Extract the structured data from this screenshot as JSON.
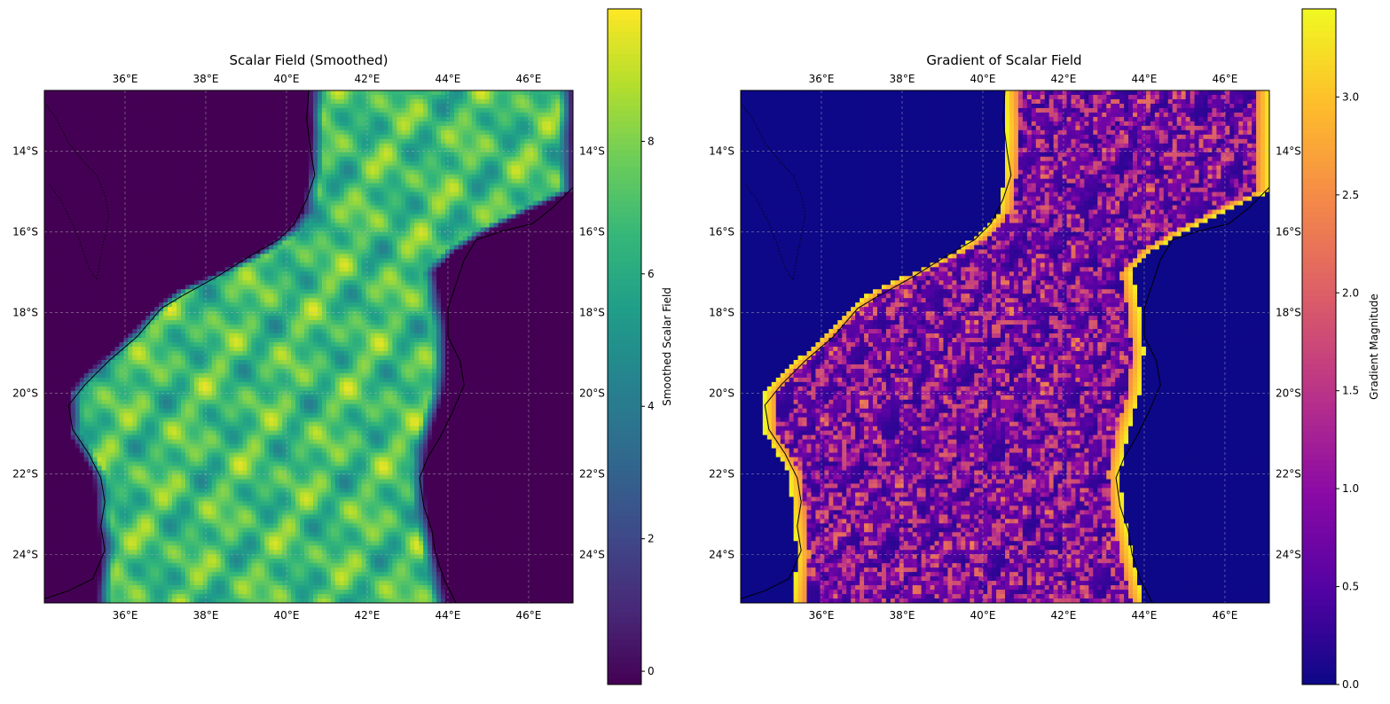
{
  "chart_data": [
    {
      "type": "heatmap",
      "title": "Scalar Field (Smoothed)",
      "colormap": "viridis",
      "colorbar_label": "Smoothed Scalar Field",
      "colorbar_range": [
        -0.2,
        10
      ],
      "colorbar_ticks": [
        {
          "value": 0,
          "label": "0"
        },
        {
          "value": 2,
          "label": "2"
        },
        {
          "value": 4,
          "label": "4"
        },
        {
          "value": 6,
          "label": "6"
        },
        {
          "value": 8,
          "label": "8"
        }
      ],
      "xlim": [
        34.0,
        47.1
      ],
      "ylim": [
        -25.2,
        -12.5
      ],
      "x_ticks": [
        {
          "value": 36,
          "label": "36°E"
        },
        {
          "value": 38,
          "label": "38°E"
        },
        {
          "value": 40,
          "label": "40°E"
        },
        {
          "value": 42,
          "label": "42°E"
        },
        {
          "value": 44,
          "label": "44°E"
        },
        {
          "value": 46,
          "label": "46°E"
        }
      ],
      "y_ticks": [
        {
          "value": -14,
          "label": "14°S"
        },
        {
          "value": -16,
          "label": "16°S"
        },
        {
          "value": -18,
          "label": "18°S"
        },
        {
          "value": -20,
          "label": "20°S"
        },
        {
          "value": -22,
          "label": "22°S"
        },
        {
          "value": -24,
          "label": "24°S"
        }
      ],
      "grid": true,
      "ocean_value": -0.2,
      "channel_mean_value": 7.5,
      "channel_value_range": [
        4.0,
        9.8
      ]
    },
    {
      "type": "heatmap",
      "title": "Gradient of Scalar Field",
      "colormap": "plasma",
      "colorbar_label": "Gradient Magnitude",
      "colorbar_range": [
        0,
        3.45
      ],
      "colorbar_ticks": [
        {
          "value": 0.0,
          "label": "0.0"
        },
        {
          "value": 0.5,
          "label": "0.5"
        },
        {
          "value": 1.0,
          "label": "1.0"
        },
        {
          "value": 1.5,
          "label": "1.5"
        },
        {
          "value": 2.0,
          "label": "2.0"
        },
        {
          "value": 2.5,
          "label": "2.5"
        },
        {
          "value": 3.0,
          "label": "3.0"
        }
      ],
      "xlim": [
        34.0,
        47.1
      ],
      "ylim": [
        -25.2,
        -12.5
      ],
      "x_ticks": [
        {
          "value": 36,
          "label": "36°E"
        },
        {
          "value": 38,
          "label": "38°E"
        },
        {
          "value": 40,
          "label": "40°E"
        },
        {
          "value": 42,
          "label": "42°E"
        },
        {
          "value": 44,
          "label": "44°E"
        },
        {
          "value": 46,
          "label": "46°E"
        }
      ],
      "y_ticks": [
        {
          "value": -14,
          "label": "14°S"
        },
        {
          "value": -16,
          "label": "16°S"
        },
        {
          "value": -18,
          "label": "18°S"
        },
        {
          "value": -20,
          "label": "20°S"
        },
        {
          "value": -22,
          "label": "22°S"
        },
        {
          "value": -24,
          "label": "24°S"
        }
      ],
      "grid": true,
      "ocean_value": 0.0,
      "channel_value_range": [
        0.2,
        1.2
      ],
      "edge_value_range": [
        2.5,
        3.4
      ]
    }
  ],
  "channel": {
    "west_boundary": [
      [
        -12.5,
        40.55
      ],
      [
        -13.5,
        40.6
      ],
      [
        -14.5,
        40.55
      ],
      [
        -15.5,
        40.4
      ],
      [
        -16.0,
        40.0
      ],
      [
        -16.5,
        39.3
      ],
      [
        -17.0,
        38.3
      ],
      [
        -17.5,
        37.2
      ],
      [
        -18.0,
        36.6
      ],
      [
        -19.0,
        35.6
      ],
      [
        -19.5,
        35.0
      ],
      [
        -20.0,
        34.6
      ],
      [
        -21.0,
        34.6
      ],
      [
        -22.0,
        35.2
      ],
      [
        -23.0,
        35.3
      ],
      [
        -24.0,
        35.4
      ],
      [
        -25.2,
        35.3
      ]
    ],
    "east_boundary": [
      [
        -12.5,
        47.1
      ],
      [
        -15.0,
        47.1
      ],
      [
        -15.5,
        46.0
      ],
      [
        -16.0,
        45.0
      ],
      [
        -16.5,
        44.2
      ],
      [
        -17.0,
        43.7
      ],
      [
        -18.0,
        43.9
      ],
      [
        -19.0,
        44.0
      ],
      [
        -20.0,
        43.9
      ],
      [
        -21.0,
        43.6
      ],
      [
        -22.0,
        43.4
      ],
      [
        -23.0,
        43.5
      ],
      [
        -24.0,
        43.7
      ],
      [
        -25.2,
        44.0
      ]
    ]
  },
  "coastlines": {
    "africa": [
      [
        40.55,
        -12.5
      ],
      [
        40.5,
        -13.2
      ],
      [
        40.6,
        -14.0
      ],
      [
        40.7,
        -14.6
      ],
      [
        40.5,
        -15.2
      ],
      [
        40.2,
        -15.8
      ],
      [
        39.8,
        -16.2
      ],
      [
        39.1,
        -16.6
      ],
      [
        38.3,
        -17.1
      ],
      [
        37.4,
        -17.6
      ],
      [
        36.9,
        -17.9
      ],
      [
        36.3,
        -18.6
      ],
      [
        35.6,
        -19.2
      ],
      [
        35.0,
        -19.8
      ],
      [
        34.6,
        -20.3
      ],
      [
        34.7,
        -20.9
      ],
      [
        35.1,
        -21.5
      ],
      [
        35.4,
        -22.1
      ],
      [
        35.5,
        -22.7
      ],
      [
        35.4,
        -23.3
      ],
      [
        35.5,
        -23.9
      ],
      [
        35.2,
        -24.6
      ],
      [
        34.6,
        -24.9
      ],
      [
        34.0,
        -25.1
      ]
    ],
    "madagascar": [
      [
        47.1,
        -14.9
      ],
      [
        46.6,
        -15.4
      ],
      [
        46.1,
        -15.8
      ],
      [
        45.3,
        -16.0
      ],
      [
        44.7,
        -16.2
      ],
      [
        44.4,
        -16.7
      ],
      [
        44.2,
        -17.3
      ],
      [
        44.0,
        -17.9
      ],
      [
        44.0,
        -18.6
      ],
      [
        44.3,
        -19.2
      ],
      [
        44.4,
        -19.8
      ],
      [
        44.1,
        -20.5
      ],
      [
        43.8,
        -21.1
      ],
      [
        43.5,
        -21.6
      ],
      [
        43.3,
        -22.1
      ],
      [
        43.4,
        -22.8
      ],
      [
        43.6,
        -23.4
      ],
      [
        43.7,
        -24.0
      ],
      [
        43.9,
        -24.6
      ],
      [
        44.2,
        -25.2
      ]
    ],
    "lake_malawi": [
      [
        34.0,
        -12.8
      ],
      [
        34.3,
        -13.2
      ],
      [
        34.6,
        -13.8
      ],
      [
        35.0,
        -14.3
      ],
      [
        35.3,
        -14.6
      ],
      [
        35.5,
        -15.1
      ],
      [
        35.6,
        -15.6
      ],
      [
        35.5,
        -16.1
      ],
      [
        35.4,
        -16.6
      ],
      [
        35.3,
        -17.2
      ],
      [
        35.1,
        -16.9
      ],
      [
        34.9,
        -16.3
      ],
      [
        34.7,
        -15.8
      ],
      [
        34.4,
        -15.2
      ],
      [
        34.1,
        -14.8
      ]
    ]
  }
}
